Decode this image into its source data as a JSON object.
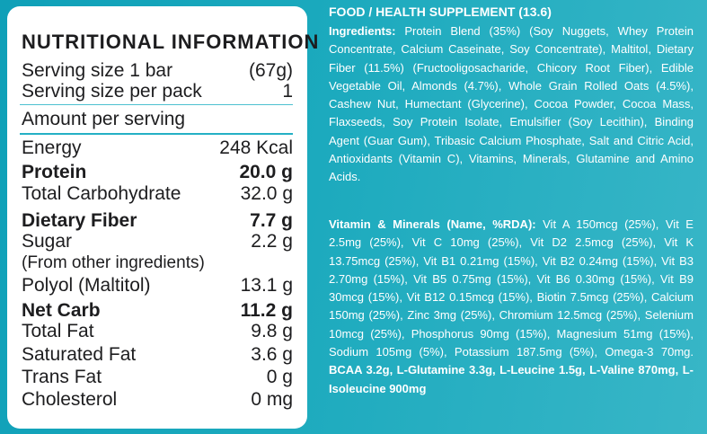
{
  "nutrition": {
    "title": "NUTRITIONAL INFORMATION",
    "rows": [
      {
        "label": "Serving size 1 bar",
        "value": "(67g)"
      },
      {
        "label": "Serving size per pack",
        "value": "1"
      },
      {
        "label": "Amount per serving",
        "value": ""
      },
      {
        "label": "Energy",
        "value": "248 Kcal"
      },
      {
        "label": "Protein",
        "value": "20.0 g"
      },
      {
        "label": "Total Carbohydrate",
        "value": "32.0 g"
      },
      {
        "label": "Dietary Fiber",
        "value": "7.7 g"
      },
      {
        "label": "Sugar",
        "value": "2.2 g"
      },
      {
        "label": "(From other ingredients)",
        "value": ""
      },
      {
        "label": "Polyol (Maltitol)",
        "value": "13.1 g"
      },
      {
        "label": "Net Carb",
        "value": "11.2 g"
      },
      {
        "label": "Total Fat",
        "value": "9.8 g"
      },
      {
        "label": "Saturated Fat",
        "value": "3.6 g"
      },
      {
        "label": "Trans Fat",
        "value": "0 g"
      },
      {
        "label": "Cholesterol",
        "value": "0 mg"
      }
    ]
  },
  "supplement": {
    "heading": "FOOD / HEALTH SUPPLEMENT (13.6)",
    "ingredients_label": "Ingredients:",
    "ingredients_text": "Protein Blend (35%) (Soy Nuggets, Whey Protein Concentrate, Calcium Caseinate, Soy Concentrate), Maltitol, Dietary Fiber (11.5%) (Fructooligosacharide, Chicory Root Fiber), Edible Vegetable Oil, Almonds (4.7%), Whole Grain Rolled Oats (4.5%), Cashew Nut, Humectant (Glycerine), Cocoa Powder, Cocoa Mass, Flaxseeds, Soy Protein Isolate, Emulsifier (Soy Lecithin), Binding Agent (Guar Gum), Tribasic Calcium Phosphate, Salt and Citric Acid, Antioxidants (Vitamin C), Vitamins, Minerals, Glutamine and Amino Acids.",
    "vitamins_label": "Vitamin & Minerals (Name, %RDA):",
    "vitamins_text": "Vit A 150mcg (25%), Vit E 2.5mg (25%), Vit C 10mg (25%), Vit D2 2.5mcg (25%), Vit K 13.75mcg (25%), Vit B1 0.21mg (15%), Vit B2 0.24mg (15%), Vit B3 2.70mg (15%), Vit B5 0.75mg (15%), Vit B6 0.30mg (15%), Vit B9 30mcg (15%), Vit B12 0.15mcg (15%), Biotin 7.5mcg (25%), Calcium 150mg (25%), Zinc 3mg (25%), Chromium 12.5mcg (25%), Selenium 10mcg (25%), Phosphorus 90mg (15%), Magnesium 51mg (15%), Sodium 105mg (5%), Potassium 187.5mg (5%), Omega-3 70mg.",
    "amino_text": "BCAA 3.2g, L-Glutamine 3.3g, L-Leucine 1.5g, L-Valine 870mg, L-Isoleucine 900mg"
  }
}
